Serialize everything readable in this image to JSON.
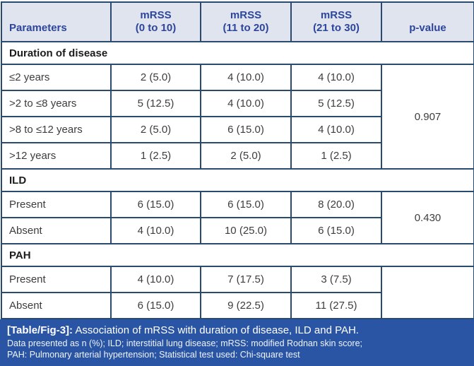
{
  "colors": {
    "border": "#2b4a70",
    "header_bg": "#e0e4ef",
    "header_text": "#2d459a",
    "footer_bg": "#2a55a4",
    "footer_text": "#ffffff",
    "body_text": "#3d3d3d"
  },
  "table": {
    "columns": [
      {
        "line1": "Parameters",
        "line2": ""
      },
      {
        "line1": "mRSS",
        "line2": "(0 to 10)"
      },
      {
        "line1": "mRSS",
        "line2": "(11 to 20)"
      },
      {
        "line1": "mRSS",
        "line2": "(21 to 30)"
      },
      {
        "line1": "p-value",
        "line2": ""
      }
    ],
    "sections": [
      {
        "title": "Duration of disease",
        "p_value": "0.907",
        "rows": [
          {
            "label": "≤2 years",
            "values": [
              "2 (5.0)",
              "4 (10.0)",
              "4 (10.0)"
            ]
          },
          {
            "label": ">2 to ≤8 years",
            "values": [
              "5 (12.5)",
              "4 (10.0)",
              "5 (12.5)"
            ]
          },
          {
            "label": ">8 to ≤12 years",
            "values": [
              "2 (5.0)",
              "6 (15.0)",
              "4 (10.0)"
            ]
          },
          {
            "label": ">12 years",
            "values": [
              "1 (2.5)",
              "2 (5.0)",
              "1 (2.5)"
            ]
          }
        ]
      },
      {
        "title": "ILD",
        "p_value": "0.430",
        "rows": [
          {
            "label": "Present",
            "values": [
              "6 (15.0)",
              "6 (15.0)",
              "8 (20.0)"
            ]
          },
          {
            "label": "Absent",
            "values": [
              "4 (10.0)",
              "10 (25.0)",
              "6 (15.0)"
            ]
          }
        ]
      },
      {
        "title": "PAH",
        "p_value": "",
        "rows": [
          {
            "label": "Present",
            "values": [
              "4 (10.0)",
              "7 (17.5)",
              "3 (7.5)"
            ]
          },
          {
            "label": "Absent",
            "values": [
              "6 (15.0)",
              "9 (22.5)",
              "11 (27.5)"
            ]
          }
        ]
      }
    ]
  },
  "caption": {
    "tag": "[Table/Fig-3]:",
    "title": " Association of mRSS with duration of disease, ILD and PAH.",
    "line2": "Data presented as n (%); ILD; interstitial lung disease; mRSS: modified Rodnan skin score;",
    "line3": "PAH: Pulmonary arterial hypertension; Statistical test used: Chi-square test"
  }
}
